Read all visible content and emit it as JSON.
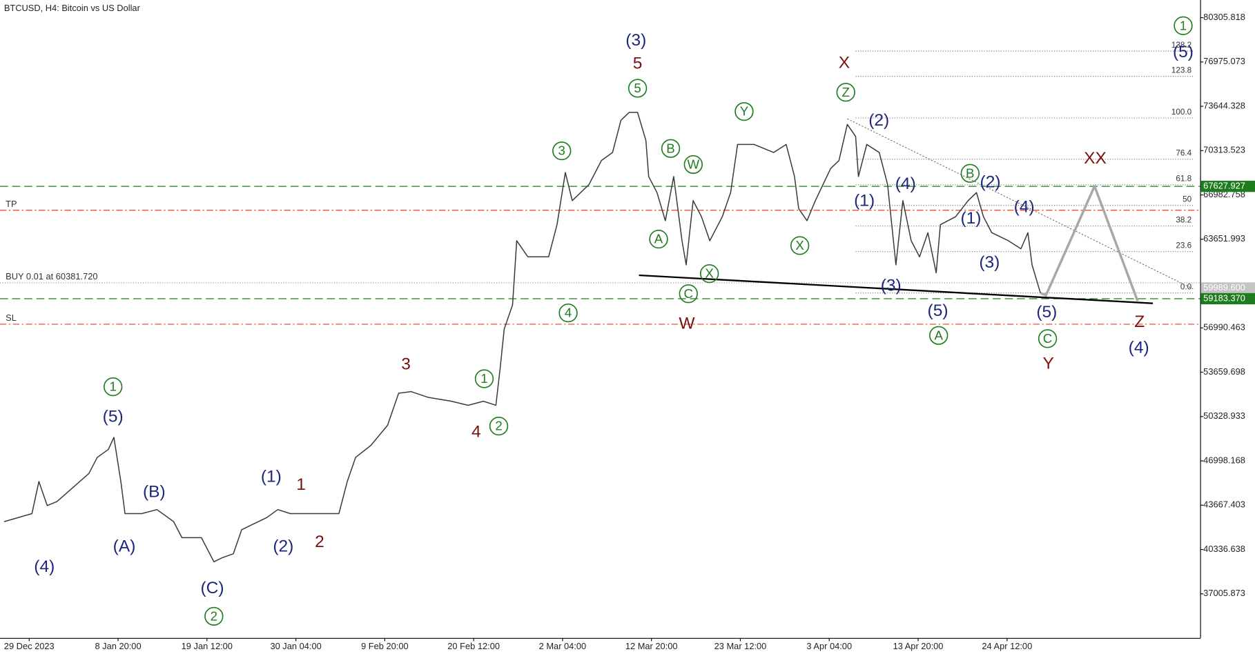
{
  "chart_data": {
    "type": "line",
    "title": "BTCUSD, H4:  Bitcoin vs US Dollar",
    "xlim": [
      0,
      864
    ],
    "xticks": [
      {
        "value": 21,
        "label": "29 Dec 2023"
      },
      {
        "value": 85,
        "label": "8 Jan 20:00"
      },
      {
        "value": 149,
        "label": "19 Jan 12:00"
      },
      {
        "value": 213,
        "label": "30 Jan 04:00"
      },
      {
        "value": 277,
        "label": "9 Feb 20:00"
      },
      {
        "value": 341,
        "label": "20 Feb 12:00"
      },
      {
        "value": 405,
        "label": "2 Mar 04:00"
      },
      {
        "value": 469,
        "label": "12 Mar 20:00"
      },
      {
        "value": 533,
        "label": "23 Mar 12:00"
      },
      {
        "value": 597,
        "label": "3 Apr 04:00"
      },
      {
        "value": 661,
        "label": "13 Apr 20:00"
      },
      {
        "value": 725,
        "label": "24 Apr 12:00"
      }
    ],
    "ylim": [
      33689,
      81632
    ],
    "yticks": [
      80305.818,
      {
        "value": 76975.073,
        "label": "76975.073"
      },
      73644.328,
      70313.523,
      66982.758,
      63651.993,
      56990.463,
      53659.698,
      50328.933,
      46998.168,
      43667.403,
      40336.638,
      37005.873
    ],
    "series": [
      {
        "color": "#3a3a3a",
        "x": [
          3,
          23,
          28,
          34,
          41,
          64,
          70,
          78,
          82,
          87,
          90,
          102,
          113,
          125,
          131,
          145,
          154,
          160,
          168,
          174,
          192,
          200,
          209,
          221,
          244,
          250,
          256,
          267,
          279,
          287,
          296,
          308,
          325,
          337,
          348,
          357,
          360,
          363,
          369,
          372,
          380,
          395,
          401,
          407,
          412,
          424,
          433,
          441,
          447,
          453,
          459,
          465,
          467,
          473,
          479,
          485,
          491,
          494,
          499,
          505,
          511,
          520,
          526,
          531,
          543,
          557,
          566,
          572,
          575,
          581,
          587,
          598,
          604,
          610,
          616,
          618,
          624,
          633,
          639,
          645,
          650,
          656,
          662,
          668,
          674,
          677,
          688,
          697,
          703,
          708,
          714,
          726,
          735,
          740,
          743,
          749
        ],
        "values": [
          42430,
          43034,
          45446,
          43637,
          43938,
          46049,
          47255,
          47858,
          48763,
          45446,
          43034,
          43034,
          43335,
          42430,
          41224,
          41224,
          39415,
          39717,
          40018,
          41827,
          42732,
          43335,
          43034,
          43034,
          43034,
          45446,
          47255,
          48160,
          49668,
          52080,
          52201,
          51778,
          51477,
          51175,
          51477,
          51175,
          53889,
          56905,
          58714,
          63539,
          62333,
          62333,
          64745,
          68665,
          66555,
          67761,
          69570,
          70173,
          72587,
          73189,
          73189,
          71078,
          68364,
          67158,
          65047,
          68364,
          63539,
          61730,
          66555,
          65348,
          63539,
          65348,
          67158,
          70776,
          70776,
          70173,
          70776,
          68364,
          65951,
          65047,
          66555,
          68967,
          69570,
          72284,
          71379,
          68364,
          70776,
          70173,
          67761,
          61730,
          66555,
          63539,
          62333,
          64142,
          61127,
          64745,
          65348,
          66555,
          67158,
          65348,
          64142,
          63539,
          62936,
          64142,
          61730,
          59619
        ]
      }
    ],
    "forecast": {
      "color": "#a8a8a8",
      "x": [
        749,
        753,
        788,
        819
      ],
      "values": [
        59619,
        59438,
        67640,
        59016
      ]
    },
    "trendline": {
      "color": "#000000",
      "x": [
        460,
        830
      ],
      "values": [
        60946,
        58835
      ]
    },
    "channel": {
      "color": "#555555",
      "x": [
        610,
        859
      ],
      "values": [
        72706,
        59920
      ]
    },
    "fibonacci": {
      "x": [
        616,
        859
      ],
      "low": 59622,
      "high": 72768,
      "color": "#777777",
      "levels": [
        {
          "value": 0,
          "label": "0.0"
        },
        23.6,
        38.2,
        50,
        61.8,
        76.4,
        {
          "value": 100,
          "label": "100.0"
        },
        123.8,
        138.2
      ]
    },
    "levels": [
      {
        "label": "TP",
        "value": 65833,
        "color": "#e8401c",
        "style": "dashdot"
      },
      {
        "label": "SL",
        "value": 57270,
        "color": "#e8401c",
        "style": "dashdot"
      },
      {
        "label": "BUY 0.01 at 60381.720",
        "value": 60381.72,
        "color": "#9a9a9a",
        "style": "dot"
      }
    ],
    "price_tags": [
      {
        "value": 67627.927,
        "label": "67627.927",
        "color": "#1e7b1e",
        "line": true
      },
      {
        "value": 59989.6,
        "label": "59989.600",
        "color": "#c4c4c4",
        "line": false
      },
      {
        "value": 59183.37,
        "label": "59183.370",
        "color": "#1e7b1e",
        "line": true
      }
    ],
    "wave_labels": [
      {
        "text": "(4)",
        "color": "#1c2779"
      },
      {
        "text": "(5)",
        "color": "#1c2779"
      },
      {
        "text": "(A)",
        "color": "#1c2779"
      },
      {
        "text": "(B)",
        "color": "#1c2779"
      },
      {
        "text": "(C)",
        "color": "#1c2779"
      },
      {
        "text": "(1)",
        "color": "#1c2779"
      },
      {
        "text": "(2)",
        "color": "#1c2779"
      },
      {
        "text": "(3)",
        "color": "#1c2779"
      },
      {
        "text": "(2)",
        "color": "#1c2779"
      },
      {
        "text": "(1)",
        "color": "#1c2779"
      },
      {
        "text": "(4)",
        "color": "#1c2779"
      },
      {
        "text": "(3)",
        "color": "#1c2779"
      },
      {
        "text": "(5)",
        "color": "#1c2779"
      },
      {
        "text": "(2)",
        "color": "#1c2779"
      },
      {
        "text": "(1)",
        "color": "#1c2779"
      },
      {
        "text": "(3)",
        "color": "#1c2779"
      },
      {
        "text": "(4)",
        "color": "#1c2779"
      },
      {
        "text": "(5)",
        "color": "#1c2779"
      },
      {
        "text": "(4)",
        "color": "#1c2779"
      },
      {
        "text": "(5)",
        "color": "#1c2779"
      },
      {
        "text": "1",
        "color": "#7a1010"
      },
      {
        "text": "2",
        "color": "#7a1010"
      },
      {
        "text": "3",
        "color": "#7a1010"
      },
      {
        "text": "4",
        "color": "#7a1010"
      },
      {
        "text": "5",
        "color": "#7a1010"
      },
      {
        "text": "X",
        "color": "#7a1010"
      },
      {
        "text": "W",
        "color": "#7a1010"
      },
      {
        "text": "XX",
        "color": "#7a1010"
      },
      {
        "text": "Y",
        "color": "#7a1010"
      },
      {
        "text": "Z",
        "color": "#7a1010"
      },
      {
        "text": "1",
        "color": "#1e7b1e",
        "circled": true
      },
      {
        "text": "2",
        "color": "#1e7b1e",
        "circled": true
      },
      {
        "text": "3",
        "color": "#1e7b1e",
        "circled": true
      },
      {
        "text": "4",
        "color": "#1e7b1e",
        "circled": true
      },
      {
        "text": "5",
        "color": "#1e7b1e",
        "circled": true
      },
      {
        "text": "1",
        "color": "#1e7b1e",
        "circled": true
      },
      {
        "text": "2",
        "color": "#1e7b1e",
        "circled": true
      },
      {
        "text": "B",
        "color": "#1e7b1e",
        "circled": true
      },
      {
        "text": "W",
        "color": "#1e7b1e",
        "circled": true
      },
      {
        "text": "A",
        "color": "#1e7b1e",
        "circled": true
      },
      {
        "text": "C",
        "color": "#1e7b1e",
        "circled": true
      },
      {
        "text": "X",
        "color": "#1e7b1e",
        "circled": true
      },
      {
        "text": "Y",
        "color": "#1e7b1e",
        "circled": true
      },
      {
        "text": "Z",
        "color": "#1e7b1e",
        "circled": true
      },
      {
        "text": "X",
        "color": "#1e7b1e",
        "circled": true
      },
      {
        "text": "B",
        "color": "#1e7b1e",
        "circled": true
      },
      {
        "text": "A",
        "color": "#1e7b1e",
        "circled": true
      },
      {
        "text": "C",
        "color": "#1e7b1e",
        "circled": true
      },
      {
        "text": "1",
        "color": "#1e7b1e",
        "circled": true
      }
    ]
  }
}
